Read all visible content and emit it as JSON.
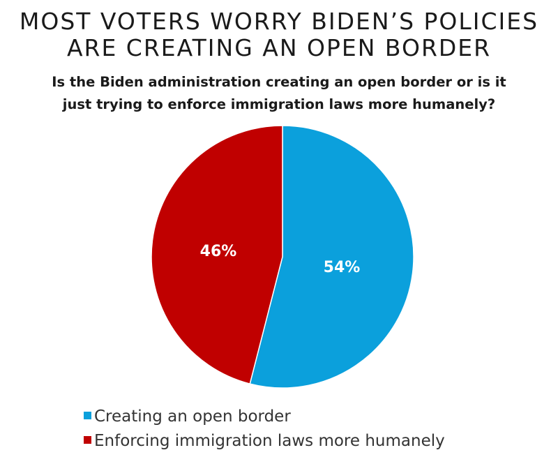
{
  "chart_data": {
    "type": "pie",
    "title": "MOST VOTERS WORRY BIDEN’S POLICIES ARE CREATING AN OPEN BORDER",
    "title_lines": [
      "MOST VOTERS WORRY BIDEN’S POLICIES",
      "ARE CREATING AN OPEN BORDER"
    ],
    "subtitle": "Is the Biden administration creating an open border or is it just trying to enforce immigration laws more humanely?",
    "subtitle_lines": [
      "Is the Biden administration creating an open border or is it",
      "just trying to enforce immigration laws more humanely?"
    ],
    "slices": [
      {
        "name": "Creating an open border",
        "value": 54,
        "label": "54%",
        "color": "#0ba0dc"
      },
      {
        "name": "Enforcing immigration laws more humanely",
        "value": 46,
        "label": "46%",
        "color": "#c00000"
      }
    ],
    "legend_position": "bottom-left"
  }
}
